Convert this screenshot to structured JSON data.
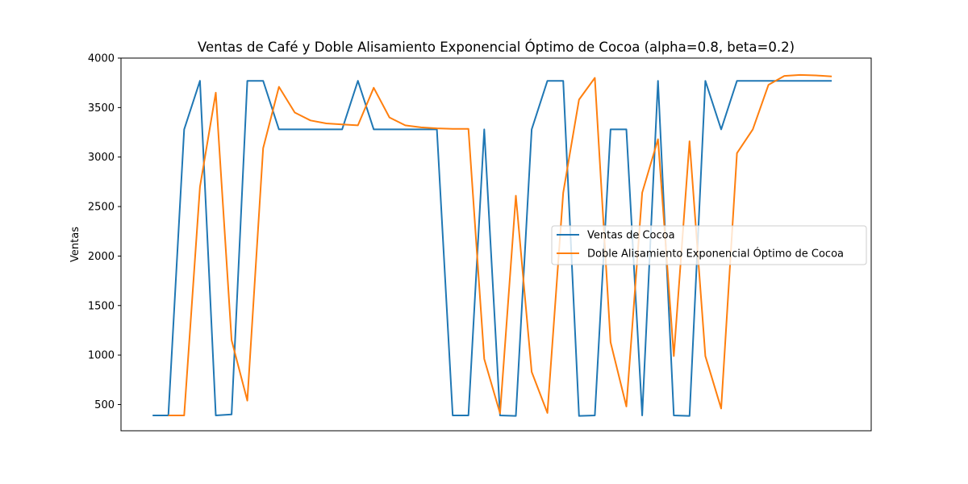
{
  "chart_data": {
    "type": "line",
    "title": "Ventas de Café y Doble Alisamiento Exponencial Óptimo de Cocoa (alpha=0.8, beta=0.2)",
    "xlabel": "",
    "ylabel": "Ventas",
    "ylim": [
      235,
      4000
    ],
    "xlim": [
      -2,
      45.5
    ],
    "yticks": [
      500,
      1000,
      1500,
      2000,
      2500,
      3000,
      3500,
      4000
    ],
    "grid": false,
    "legend_position": "center-right",
    "series": [
      {
        "name": "Ventas de Cocoa",
        "color": "#1f77b4",
        "x": [
          0,
          1,
          2,
          3,
          4,
          5,
          6,
          7,
          8,
          9,
          10,
          11,
          12,
          13,
          14,
          15,
          16,
          17,
          18,
          19,
          20,
          21,
          22,
          23,
          24,
          25,
          26,
          27,
          28,
          29,
          30,
          31,
          32,
          33,
          34,
          35,
          36,
          37,
          38,
          39,
          40,
          41,
          42,
          43
        ],
        "values": [
          390,
          390,
          3280,
          3770,
          390,
          400,
          3770,
          3770,
          3280,
          3280,
          3280,
          3280,
          3280,
          3770,
          3280,
          3280,
          3280,
          3280,
          3280,
          390,
          390,
          3280,
          390,
          385,
          3280,
          3770,
          3770,
          385,
          390,
          3280,
          3280,
          390,
          3770,
          390,
          385,
          3770,
          3280,
          3770,
          3770,
          3770,
          3770,
          3770,
          3770,
          3770
        ]
      },
      {
        "name": "Doble Alisamiento Exponencial Óptimo de Cocoa",
        "color": "#ff7f0e",
        "x": [
          1,
          2,
          3,
          4,
          5,
          6,
          7,
          8,
          9,
          10,
          11,
          12,
          13,
          14,
          15,
          16,
          17,
          18,
          19,
          20,
          21,
          22,
          23,
          24,
          25,
          26,
          27,
          28,
          29,
          30,
          31,
          32,
          33,
          34,
          35,
          36,
          37,
          38,
          39,
          40,
          41,
          42,
          43
        ],
        "values": [
          390,
          390,
          2700,
          3650,
          1150,
          540,
          3090,
          3710,
          3450,
          3370,
          3340,
          3330,
          3320,
          3700,
          3400,
          3320,
          3300,
          3290,
          3285,
          3285,
          960,
          410,
          2610,
          830,
          415,
          2640,
          3580,
          3800,
          1130,
          480,
          2640,
          3180,
          990,
          3160,
          990,
          460,
          3040,
          3280,
          3730,
          3820,
          3830,
          3825,
          3815
        ]
      }
    ]
  }
}
